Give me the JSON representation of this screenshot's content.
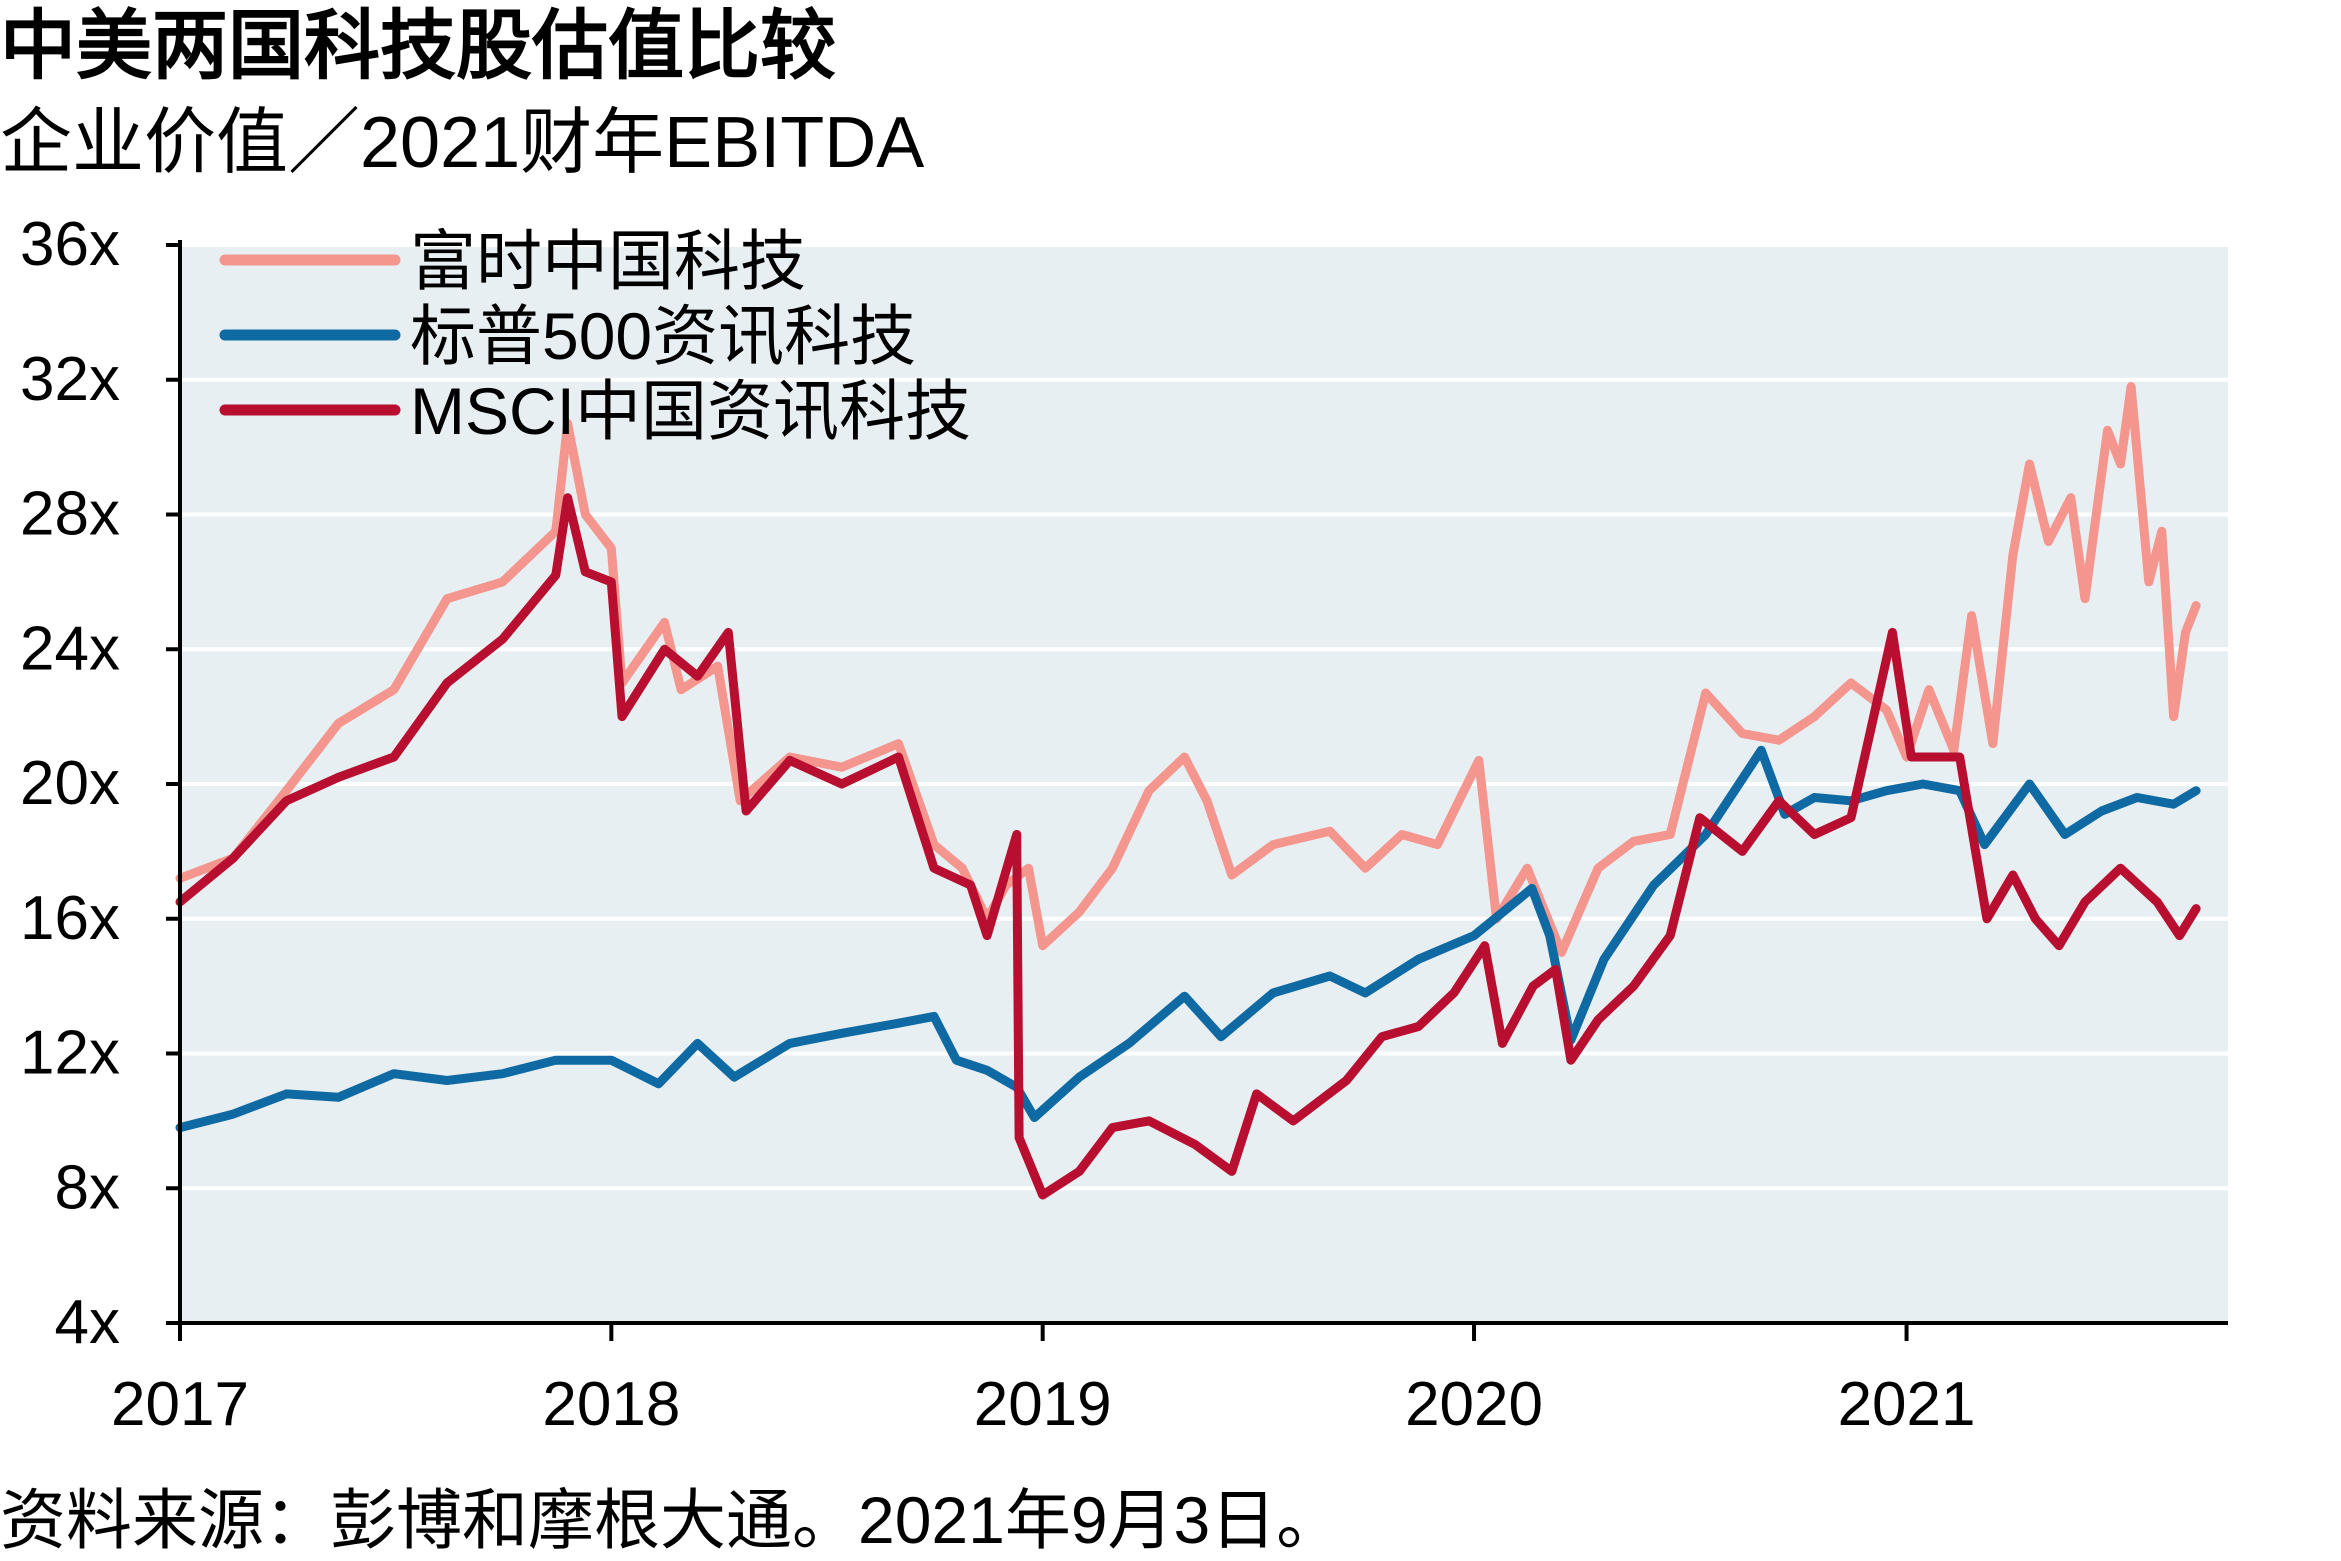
{
  "title": "中美两国科技股估值比较",
  "subtitle": "企业价值／2021财年EBITDA",
  "source": "资料来源：彭博和摩根大通。2021年9月3日。",
  "colors": {
    "plot_background": "#e8eff3",
    "gridline": "#ffffff",
    "axis": "#000000"
  },
  "chart_data": {
    "type": "line",
    "title": "中美两国科技股估值比较",
    "subtitle": "企业价值／2021财年EBITDA",
    "x_axis": {
      "type": "date",
      "range": [
        "2017-01-01",
        "2021-09-30"
      ],
      "ticks": [
        "2017",
        "2018",
        "2019",
        "2020",
        "2021"
      ]
    },
    "y_axis": {
      "range": [
        4,
        36
      ],
      "ticks": [
        "4x",
        "8x",
        "12x",
        "16x",
        "20x",
        "24x",
        "28x",
        "32x",
        "36x"
      ],
      "tick_values": [
        4,
        8,
        12,
        16,
        20,
        24,
        28,
        32,
        36
      ]
    },
    "grid": "horizontal",
    "legend_position": "top-left",
    "series": [
      {
        "name": "富时中国科技",
        "color": "#f4958e",
        "points": [
          [
            "2017-01-01",
            17.2
          ],
          [
            "2017-02-15",
            17.8
          ],
          [
            "2017-04-01",
            19.8
          ],
          [
            "2017-05-15",
            21.8
          ],
          [
            "2017-07-01",
            22.8
          ],
          [
            "2017-08-15",
            25.5
          ],
          [
            "2017-10-01",
            26.0
          ],
          [
            "2017-11-15",
            27.5
          ],
          [
            "2017-11-25",
            30.7
          ],
          [
            "2017-12-10",
            28.0
          ],
          [
            "2018-01-01",
            27.0
          ],
          [
            "2018-01-10",
            23.0
          ],
          [
            "2018-02-15",
            24.8
          ],
          [
            "2018-03-01",
            22.8
          ],
          [
            "2018-04-01",
            23.5
          ],
          [
            "2018-04-20",
            19.5
          ],
          [
            "2018-06-01",
            20.8
          ],
          [
            "2018-07-15",
            20.5
          ],
          [
            "2018-09-01",
            21.2
          ],
          [
            "2018-10-01",
            18.2
          ],
          [
            "2018-10-25",
            17.5
          ],
          [
            "2018-11-15",
            16.0
          ],
          [
            "2018-12-01",
            17.0
          ],
          [
            "2018-12-20",
            17.5
          ],
          [
            "2019-01-01",
            15.2
          ],
          [
            "2019-02-01",
            16.2
          ],
          [
            "2019-03-01",
            17.5
          ],
          [
            "2019-04-01",
            19.8
          ],
          [
            "2019-05-01",
            20.8
          ],
          [
            "2019-05-20",
            19.5
          ],
          [
            "2019-06-10",
            17.3
          ],
          [
            "2019-07-15",
            18.2
          ],
          [
            "2019-09-01",
            18.6
          ],
          [
            "2019-10-01",
            17.5
          ],
          [
            "2019-11-01",
            18.5
          ],
          [
            "2019-12-01",
            18.2
          ],
          [
            "2020-01-05",
            20.7
          ],
          [
            "2020-01-20",
            16.0
          ],
          [
            "2020-02-15",
            17.5
          ],
          [
            "2020-03-15",
            15.0
          ],
          [
            "2020-04-15",
            17.5
          ],
          [
            "2020-05-15",
            18.3
          ],
          [
            "2020-06-15",
            18.5
          ],
          [
            "2020-07-15",
            22.7
          ],
          [
            "2020-08-15",
            21.5
          ],
          [
            "2020-09-15",
            21.3
          ],
          [
            "2020-10-15",
            22.0
          ],
          [
            "2020-11-15",
            23.0
          ],
          [
            "2020-12-15",
            22.2
          ],
          [
            "2021-01-01",
            20.8
          ],
          [
            "2021-01-20",
            22.8
          ],
          [
            "2021-02-10",
            21.0
          ],
          [
            "2021-02-25",
            25.0
          ],
          [
            "2021-03-15",
            21.2
          ],
          [
            "2021-04-01",
            26.8
          ],
          [
            "2021-04-15",
            29.5
          ],
          [
            "2021-05-01",
            27.2
          ],
          [
            "2021-05-20",
            28.5
          ],
          [
            "2021-06-01",
            25.5
          ],
          [
            "2021-06-20",
            30.5
          ],
          [
            "2021-07-01",
            29.5
          ],
          [
            "2021-07-10",
            31.8
          ],
          [
            "2021-07-25",
            26.0
          ],
          [
            "2021-08-05",
            27.5
          ],
          [
            "2021-08-15",
            22.0
          ],
          [
            "2021-08-25",
            24.5
          ],
          [
            "2021-09-03",
            25.3
          ]
        ]
      },
      {
        "name": "标普500资讯科技",
        "color": "#0f6aa3",
        "points": [
          [
            "2017-01-01",
            9.8
          ],
          [
            "2017-02-15",
            10.2
          ],
          [
            "2017-04-01",
            10.8
          ],
          [
            "2017-05-15",
            10.7
          ],
          [
            "2017-07-01",
            11.4
          ],
          [
            "2017-08-15",
            11.2
          ],
          [
            "2017-10-01",
            11.4
          ],
          [
            "2017-11-15",
            11.8
          ],
          [
            "2018-01-01",
            11.8
          ],
          [
            "2018-02-10",
            11.1
          ],
          [
            "2018-03-15",
            12.3
          ],
          [
            "2018-04-15",
            11.3
          ],
          [
            "2018-06-01",
            12.3
          ],
          [
            "2018-07-15",
            12.6
          ],
          [
            "2018-09-01",
            12.9
          ],
          [
            "2018-10-01",
            13.1
          ],
          [
            "2018-10-20",
            11.8
          ],
          [
            "2018-11-15",
            11.5
          ],
          [
            "2018-12-10",
            11.0
          ],
          [
            "2018-12-25",
            10.1
          ],
          [
            "2019-02-01",
            11.3
          ],
          [
            "2019-03-15",
            12.3
          ],
          [
            "2019-05-01",
            13.7
          ],
          [
            "2019-06-01",
            12.5
          ],
          [
            "2019-07-15",
            13.8
          ],
          [
            "2019-09-01",
            14.3
          ],
          [
            "2019-10-01",
            13.8
          ],
          [
            "2019-11-15",
            14.8
          ],
          [
            "2020-01-01",
            15.5
          ],
          [
            "2020-02-19",
            16.9
          ],
          [
            "2020-03-05",
            15.5
          ],
          [
            "2020-03-23",
            12.4
          ],
          [
            "2020-04-20",
            14.8
          ],
          [
            "2020-06-01",
            17.0
          ],
          [
            "2020-07-15",
            18.5
          ],
          [
            "2020-08-31",
            21.0
          ],
          [
            "2020-09-20",
            19.1
          ],
          [
            "2020-10-15",
            19.6
          ],
          [
            "2020-11-15",
            19.5
          ],
          [
            "2020-12-15",
            19.8
          ],
          [
            "2021-01-15",
            20.0
          ],
          [
            "2021-02-15",
            19.8
          ],
          [
            "2021-03-08",
            18.2
          ],
          [
            "2021-04-15",
            20.0
          ],
          [
            "2021-05-15",
            18.5
          ],
          [
            "2021-06-15",
            19.2
          ],
          [
            "2021-07-15",
            19.6
          ],
          [
            "2021-08-15",
            19.4
          ],
          [
            "2021-09-03",
            19.8
          ]
        ]
      },
      {
        "name": "MSCI中国资讯科技",
        "color": "#b80f30",
        "points": [
          [
            "2017-01-01",
            16.5
          ],
          [
            "2017-02-15",
            17.8
          ],
          [
            "2017-04-01",
            19.5
          ],
          [
            "2017-05-15",
            20.2
          ],
          [
            "2017-07-01",
            20.8
          ],
          [
            "2017-08-15",
            23.0
          ],
          [
            "2017-10-01",
            24.3
          ],
          [
            "2017-11-15",
            26.2
          ],
          [
            "2017-11-25",
            28.5
          ],
          [
            "2017-12-10",
            26.3
          ],
          [
            "2018-01-01",
            26.0
          ],
          [
            "2018-01-10",
            22.0
          ],
          [
            "2018-02-15",
            24.0
          ],
          [
            "2018-03-15",
            23.2
          ],
          [
            "2018-04-10",
            24.5
          ],
          [
            "2018-04-25",
            19.2
          ],
          [
            "2018-06-01",
            20.7
          ],
          [
            "2018-07-15",
            20.0
          ],
          [
            "2018-09-01",
            20.8
          ],
          [
            "2018-10-01",
            17.5
          ],
          [
            "2018-11-01",
            17.0
          ],
          [
            "2018-11-15",
            15.5
          ],
          [
            "2018-12-10",
            18.5
          ],
          [
            "2018-12-12",
            9.5
          ],
          [
            "2019-01-01",
            7.8
          ],
          [
            "2019-02-01",
            8.5
          ],
          [
            "2019-03-01",
            9.8
          ],
          [
            "2019-04-01",
            10.0
          ],
          [
            "2019-05-10",
            9.3
          ],
          [
            "2019-06-10",
            8.5
          ],
          [
            "2019-07-01",
            10.8
          ],
          [
            "2019-08-01",
            10.0
          ],
          [
            "2019-09-15",
            11.2
          ],
          [
            "2019-10-15",
            12.5
          ],
          [
            "2019-11-15",
            12.8
          ],
          [
            "2019-12-15",
            13.8
          ],
          [
            "2020-01-10",
            15.2
          ],
          [
            "2020-01-25",
            12.3
          ],
          [
            "2020-02-20",
            14.0
          ],
          [
            "2020-03-10",
            14.5
          ],
          [
            "2020-03-23",
            11.8
          ],
          [
            "2020-04-15",
            13.0
          ],
          [
            "2020-05-15",
            14.0
          ],
          [
            "2020-06-15",
            15.5
          ],
          [
            "2020-07-10",
            19.0
          ],
          [
            "2020-08-15",
            18.0
          ],
          [
            "2020-09-15",
            19.5
          ],
          [
            "2020-10-15",
            18.5
          ],
          [
            "2020-11-15",
            19.0
          ],
          [
            "2020-12-01",
            21.5
          ],
          [
            "2020-12-20",
            24.5
          ],
          [
            "2021-01-05",
            20.8
          ],
          [
            "2021-02-15",
            20.8
          ],
          [
            "2021-03-10",
            16.0
          ],
          [
            "2021-04-01",
            17.3
          ],
          [
            "2021-04-20",
            16.0
          ],
          [
            "2021-05-10",
            15.2
          ],
          [
            "2021-06-01",
            16.5
          ],
          [
            "2021-07-01",
            17.5
          ],
          [
            "2021-08-01",
            16.5
          ],
          [
            "2021-08-20",
            15.5
          ],
          [
            "2021-09-03",
            16.3
          ]
        ]
      }
    ]
  }
}
